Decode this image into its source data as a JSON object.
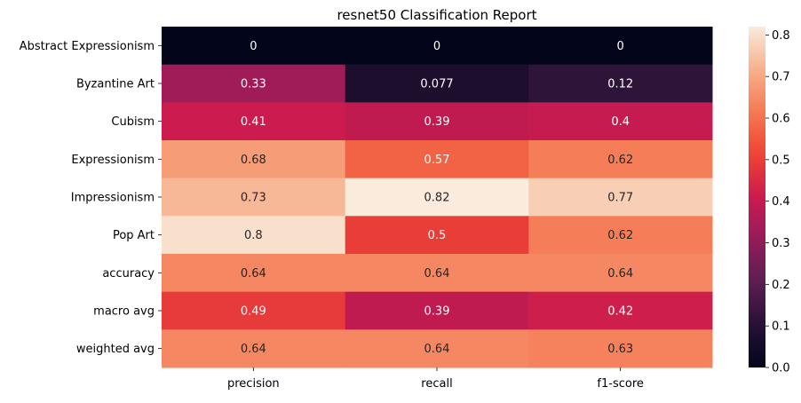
{
  "chart_data": {
    "type": "heatmap",
    "title": "resnet50 Classification Report",
    "xlabel": "",
    "ylabel": "",
    "rows": [
      "Abstract Expressionism",
      "Byzantine Art",
      "Cubism",
      "Expressionism",
      "Impressionism",
      "Pop Art",
      "accuracy",
      "macro avg",
      "weighted avg"
    ],
    "columns": [
      "precision",
      "recall",
      "f1-score"
    ],
    "values": [
      [
        0,
        0,
        0
      ],
      [
        0.33,
        0.077,
        0.12
      ],
      [
        0.41,
        0.39,
        0.4
      ],
      [
        0.68,
        0.57,
        0.62
      ],
      [
        0.73,
        0.82,
        0.77
      ],
      [
        0.8,
        0.5,
        0.62
      ],
      [
        0.64,
        0.64,
        0.64
      ],
      [
        0.49,
        0.39,
        0.42
      ],
      [
        0.64,
        0.64,
        0.63
      ]
    ],
    "colorbar": {
      "range": [
        0,
        0.82
      ],
      "ticks": [
        "0.0",
        "0.1",
        "0.2",
        "0.3",
        "0.4",
        "0.5",
        "0.6",
        "0.7",
        "0.8"
      ],
      "colormap": "rocket"
    },
    "legend": "colorbar-right"
  }
}
